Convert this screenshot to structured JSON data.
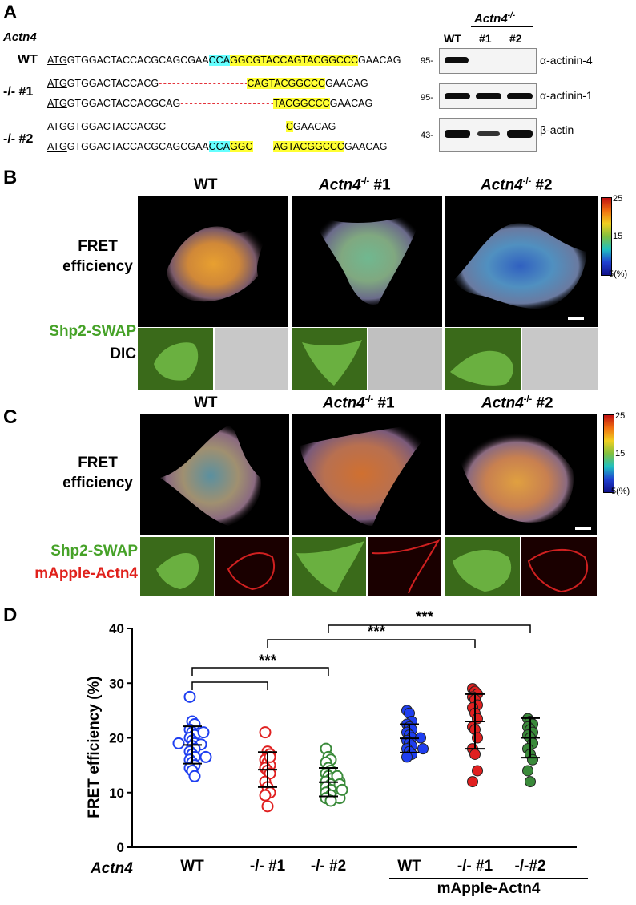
{
  "panelA": {
    "letter": "A",
    "gene": "Actn4",
    "rows": [
      {
        "label": "WT",
        "atg": "ATG",
        "seg1": "GTGGACTACCACGCAGCGAA",
        "cyan": "CCA",
        "yellow": "GGCGTACCAGTACGGCCC",
        "tail": "GAACAG"
      },
      {
        "label": "-/- #1",
        "atg": "ATG",
        "seg1": "GTGGACTACCACG",
        "dashes": "- - - - - - - - - - - - - - - - - - - -",
        "yellow": "CAGTACGGCCC",
        "tail": "GAACAG"
      },
      {
        "label": "",
        "atg": "ATG",
        "seg1": "GTGGACTACCACGCAG",
        "dashes": "- - - - - - - - - - - - - - - - - - - - -",
        "yellow": "TACGGCCC",
        "tail": "GAACAG"
      },
      {
        "label": "-/- #2",
        "atg": "ATG",
        "seg1": "GTGGACTACCACGC",
        "dashes": "- - - - - - - - - - - - - - - - - - - - - - - - - - -",
        "yellow": "C",
        "tail": "GAACAG"
      },
      {
        "label": "",
        "atg": "ATG",
        "seg1": "GTGGACTACCACGCAGCGAA",
        "cyan": "CCA",
        "yellow1": "GGC",
        "dashes": "- - - - -",
        "yellow": "AGTACGGCCC",
        "tail": "GAACAG"
      }
    ],
    "blot": {
      "header_ko": "Actn4",
      "header_ko_sup": "-/-",
      "lanes": [
        "WT",
        "#1",
        "#2"
      ],
      "rows": [
        {
          "mw": "95-",
          "label": "α-actinin-4"
        },
        {
          "mw": "95-",
          "label": "α-actinin-1"
        },
        {
          "mw": "43-",
          "label": "β-actin"
        }
      ]
    }
  },
  "panelB": {
    "letter": "B",
    "headers": [
      {
        "main": "WT",
        "sup": "",
        "suffix": ""
      },
      {
        "main": "Actn4",
        "sup": "-/-",
        "suffix": " #1"
      },
      {
        "main": "Actn4",
        "sup": "-/-",
        "suffix": " #2"
      }
    ],
    "row_label_line1": "FRET",
    "row_label_line2": "efficiency",
    "sub_label1": "Shp2-SWAP",
    "sub_label2": "DIC",
    "scale_ticks": [
      "25",
      "15",
      "5(%)"
    ]
  },
  "panelC": {
    "letter": "C",
    "headers": [
      {
        "main": "WT",
        "sup": "",
        "suffix": ""
      },
      {
        "main": "Actn4",
        "sup": "-/-",
        "suffix": " #1"
      },
      {
        "main": "Actn4",
        "sup": "-/-",
        "suffix": " #2"
      }
    ],
    "row_label_line1": "FRET",
    "row_label_line2": "efficiency",
    "sub_label1": "Shp2-SWAP",
    "sub_label2": "mApple-Actn4",
    "scale_ticks": [
      "25",
      "15",
      "5(%)"
    ]
  },
  "panelD": {
    "letter": "D",
    "row_label": "Actn4",
    "group_label": "mApple-Actn4",
    "significance": "***"
  },
  "chart_data": {
    "type": "scatter",
    "ylabel": "FRET efficiency (%)",
    "ylim": [
      0,
      40
    ],
    "yticks": [
      "0",
      "10",
      "20",
      "30",
      "40"
    ],
    "categories": [
      "WT",
      "-/- #1",
      "-/- #2",
      "WT",
      "-/- #1",
      "-/-#2"
    ],
    "series": [
      {
        "category": "WT",
        "filled": false,
        "color": "#1f3ff0",
        "mean": 18.7,
        "sd": 3.4,
        "values": [
          27.5,
          23.0,
          22.5,
          21.5,
          21.0,
          20.5,
          20.0,
          19.5,
          19.0,
          18.8,
          18.5,
          18.0,
          17.5,
          17.0,
          16.5,
          16.0,
          15.5,
          15.0,
          14.5,
          14.0,
          13.0,
          19.0,
          21.0,
          16.5
        ]
      },
      {
        "category": "-/- #1",
        "filled": false,
        "color": "#e02020",
        "mean": 14.2,
        "sd": 3.2,
        "values": [
          21.0,
          17.5,
          17.0,
          16.0,
          15.5,
          15.0,
          14.5,
          14.0,
          13.5,
          12.0,
          11.0,
          10.0,
          9.5,
          7.5,
          16.5
        ]
      },
      {
        "category": "-/- #2",
        "filled": false,
        "color": "#3a8a3a",
        "mean": 11.9,
        "sd": 2.6,
        "values": [
          18.0,
          16.5,
          16.0,
          15.5,
          14.5,
          14.0,
          13.5,
          13.0,
          12.5,
          12.0,
          12.0,
          11.5,
          11.0,
          11.0,
          10.5,
          10.0,
          10.0,
          9.5,
          9.0,
          9.0,
          8.5,
          13.0,
          11.5,
          10.5
        ]
      },
      {
        "category": "WT",
        "filled": true,
        "color": "#1f3ff0",
        "mean": 19.9,
        "sd": 2.6,
        "values": [
          25.0,
          24.5,
          23.0,
          22.5,
          22.0,
          21.5,
          21.0,
          20.5,
          20.0,
          19.5,
          19.0,
          18.5,
          18.0,
          17.5,
          17.0,
          16.5,
          20.0,
          18.0
        ]
      },
      {
        "category": "-/- #1",
        "filled": true,
        "color": "#e02020",
        "mean": 23.0,
        "sd": 5.0,
        "values": [
          29.0,
          28.5,
          28.0,
          27.5,
          27.0,
          26.0,
          25.5,
          24.5,
          23.5,
          22.0,
          21.5,
          20.0,
          18.0,
          17.0,
          14.0,
          12.0
        ]
      },
      {
        "category": "-/-#2",
        "filled": true,
        "color": "#3a8a3a",
        "mean": 20.0,
        "sd": 3.6,
        "values": [
          23.5,
          23.0,
          22.5,
          22.0,
          21.5,
          21.0,
          20.5,
          20.0,
          19.0,
          18.0,
          17.0,
          16.0,
          14.0,
          12.0
        ]
      }
    ],
    "comparisons": [
      {
        "from": 0,
        "to": 1,
        "label": "***"
      },
      {
        "from": 0,
        "to": 2,
        "label": "***"
      },
      {
        "from": 1,
        "to": 4,
        "label": "***"
      },
      {
        "from": 2,
        "to": 5,
        "label": "***"
      }
    ]
  }
}
